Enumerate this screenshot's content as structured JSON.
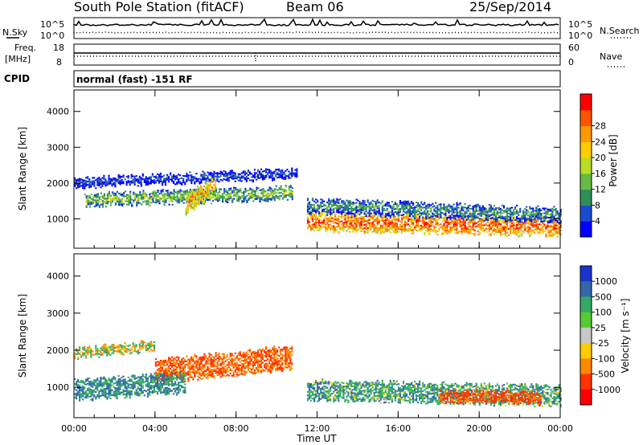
{
  "header": {
    "station": "South Pole Station (fitACF)",
    "beam": "Beam 06",
    "date": "25/Sep/2014"
  },
  "top_panels": {
    "nsky_label": "N.Sky",
    "nsearch_label": "N.Search",
    "exp_hi": "10^5",
    "exp_lo": "10^0",
    "freq_label": "Freq.",
    "freq_unit": "[MHz]",
    "freq_ticks": [
      "18",
      "8"
    ],
    "nave_label": "Nave",
    "nave_ticks": [
      "60",
      "0"
    ],
    "cpid_label": "CPID",
    "cpid_text": "normal (fast) -151 RF"
  },
  "chart_data": [
    {
      "type": "heatmap",
      "panel": "power",
      "ylabel": "Slant Range [km]",
      "xlabel": "",
      "x_ticks": [
        "00:00",
        "04:00",
        "08:00",
        "12:00",
        "16:00",
        "20:00",
        "00:00"
      ],
      "xlim_hours": [
        0,
        24
      ],
      "y_ticks": [
        1000,
        2000,
        3000,
        4000
      ],
      "ylim": [
        180,
        4600
      ],
      "colorbar": {
        "label": "Power [dB]",
        "ticks": [
          "4",
          "8",
          "12",
          "16",
          "20",
          "24",
          "28"
        ],
        "range": [
          0,
          30
        ],
        "colors": [
          "#0000ff",
          "#1a4bd0",
          "#2f8f5a",
          "#66bb44",
          "#bbdd22",
          "#ffcc00",
          "#ff9900",
          "#ff5500",
          "#ff0000"
        ]
      },
      "echo_bands": [
        {
          "hours": [
            0.0,
            11.0
          ],
          "center_km": [
            2000,
            2250
          ],
          "half_width_km": 130,
          "power_db": 6
        },
        {
          "hours": [
            0.5,
            10.8
          ],
          "center_km": [
            1500,
            1700
          ],
          "half_width_km": 160,
          "power_db": 14
        },
        {
          "hours": [
            5.5,
            7.0
          ],
          "center_km": [
            1400,
            1900
          ],
          "half_width_km": 250,
          "power_db": 22
        },
        {
          "hours": [
            11.5,
            24.0
          ],
          "center_km": [
            900,
            750
          ],
          "half_width_km": 230,
          "power_db": 26
        },
        {
          "hours": [
            11.5,
            24.0
          ],
          "center_km": [
            1350,
            1100
          ],
          "half_width_km": 200,
          "power_db": 10
        }
      ]
    },
    {
      "type": "heatmap",
      "panel": "velocity",
      "ylabel": "Slant Range [km]",
      "xlabel": "Time UT",
      "x_ticks": [
        "00:00",
        "04:00",
        "08:00",
        "12:00",
        "16:00",
        "20:00",
        "00:00"
      ],
      "xlim_hours": [
        0,
        24
      ],
      "y_ticks": [
        1000,
        2000,
        3000,
        4000
      ],
      "ylim": [
        180,
        4600
      ],
      "colorbar": {
        "label": "Velocity [m s⁻¹]",
        "ticks": [
          "1000",
          "500",
          "100",
          "25",
          "-25",
          "-100",
          "-500",
          "-1000"
        ],
        "colors": [
          "#1a33cc",
          "#3366aa",
          "#33aa66",
          "#55cc33",
          "#c8c8c8",
          "#ffcc00",
          "#ff8800",
          "#ff3300",
          "#ff0000"
        ]
      },
      "echo_bands": [
        {
          "hours": [
            0.0,
            4.0
          ],
          "center_km": [
            1900,
            2100
          ],
          "half_width_km": 120,
          "velocity_ms": 25
        },
        {
          "hours": [
            4.0,
            10.8
          ],
          "center_km": [
            1400,
            1800
          ],
          "half_width_km": 300,
          "velocity_ms": -300
        },
        {
          "hours": [
            0.0,
            5.5
          ],
          "center_km": [
            900,
            1100
          ],
          "half_width_km": 250,
          "velocity_ms": 300
        },
        {
          "hours": [
            11.5,
            24.0
          ],
          "center_km": [
            900,
            750
          ],
          "half_width_km": 250,
          "velocity_ms": 200
        },
        {
          "hours": [
            18.0,
            23.0
          ],
          "center_km": [
            750,
            700
          ],
          "half_width_km": 150,
          "velocity_ms": -400
        }
      ]
    }
  ]
}
